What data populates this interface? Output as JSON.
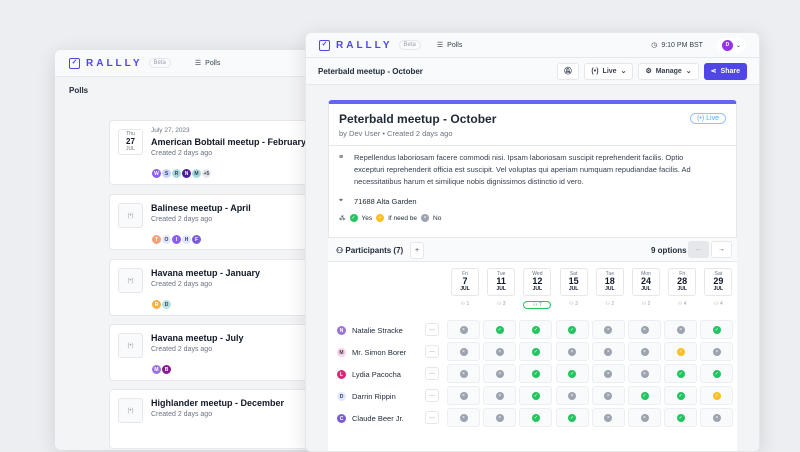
{
  "app": {
    "name": "RALLLY",
    "beta": "Beta",
    "nav_polls": "Polls",
    "time": "9:10 PM BST",
    "user_initial": "D"
  },
  "back": {
    "heading": "Polls",
    "polls": [
      {
        "date": {
          "dow": "Thu",
          "day": "27",
          "mon": "JUL"
        },
        "date_text": "July 27, 2023",
        "title": "American Bobtail meetup - February",
        "created": "Created 2 days ago",
        "avatars": [
          {
            "i": "W",
            "c": "#8b5cf6"
          },
          {
            "i": "S",
            "c": "#c7d2fe"
          },
          {
            "i": "R",
            "c": "#a5d8dd"
          },
          {
            "i": "N",
            "c": "#4c1d95"
          },
          {
            "i": "M",
            "c": "#a5d8dd"
          },
          {
            "i": "+5",
            "c": "#e5e7eb"
          }
        ]
      },
      {
        "title": "Balinese meetup - April",
        "created": "Created 2 days ago",
        "avatars": [
          {
            "i": "T",
            "c": "#f4a17a"
          },
          {
            "i": "O",
            "c": "#e0e7ff"
          },
          {
            "i": "I",
            "c": "#8b5cf6"
          },
          {
            "i": "H",
            "c": "#e0e7ff"
          },
          {
            "i": "F",
            "c": "#7c5cd6"
          }
        ]
      },
      {
        "title": "Havana meetup - January",
        "created": "Created 2 days ago",
        "avatars": [
          {
            "i": "R",
            "c": "#f5b041"
          },
          {
            "i": "D",
            "c": "#b5e0e6"
          }
        ]
      },
      {
        "title": "Havana meetup - July",
        "created": "Created 2 days ago",
        "avatars": [
          {
            "i": "M",
            "c": "#9b72d8"
          },
          {
            "i": "B",
            "c": "#86198f"
          }
        ]
      },
      {
        "title": "Highlander meetup - December",
        "created": "Created 2 days ago",
        "avatars": []
      }
    ]
  },
  "front": {
    "breadcrumb": "Peterbald meetup - October",
    "live": "Live",
    "manage": "Manage",
    "share": "Share",
    "title": "Peterbald meetup - October",
    "byline": "by Dev User • Created 2 days ago",
    "badge": "Live",
    "description": "Repellendus laboriosam facere commodi nisi. Ipsam laboriosam suscipit reprehenderit facilis. Optio excepturi reprehenderit officia est suscipit. Vel voluptas qui aperiam numquam repudiandae facilis. Ad necessitatibus harum et similique nobis dignissimos distinctio id vero.",
    "location": "71688 Alta Garden",
    "legend": {
      "yes": "Yes",
      "maybe": "If need be",
      "no": "No"
    },
    "participants_label": "Participants (7)",
    "options_count": "9 options",
    "options": [
      {
        "dow": "Fri",
        "day": "7",
        "mon": "JUL",
        "count": "1"
      },
      {
        "dow": "Tue",
        "day": "11",
        "mon": "JUL",
        "count": "3"
      },
      {
        "dow": "Wed",
        "day": "12",
        "mon": "JUL",
        "count": "7"
      },
      {
        "dow": "Sat",
        "day": "15",
        "mon": "JUL",
        "count": "3"
      },
      {
        "dow": "Tue",
        "day": "18",
        "mon": "JUL",
        "count": "2"
      },
      {
        "dow": "Mon",
        "day": "24",
        "mon": "JUL",
        "count": "2"
      },
      {
        "dow": "Fri",
        "day": "28",
        "mon": "JUL",
        "count": "4"
      },
      {
        "dow": "Sat",
        "day": "29",
        "mon": "JUL",
        "count": "4"
      }
    ],
    "participants": [
      {
        "name": "Natalie Stracke",
        "initial": "N",
        "color": "#9b72d8",
        "votes": [
          "no",
          "yes",
          "yes",
          "yes",
          "no",
          "no",
          "no",
          "yes"
        ]
      },
      {
        "name": "Mr. Simon Borer",
        "initial": "M",
        "color": "#fbcfe8",
        "votes": [
          "no",
          "no",
          "yes",
          "no",
          "no",
          "no",
          "maybe",
          "no"
        ]
      },
      {
        "name": "Lydia Pacocha",
        "initial": "L",
        "color": "#db2777",
        "votes": [
          "no",
          "no",
          "yes",
          "yes",
          "no",
          "no",
          "yes",
          "yes"
        ]
      },
      {
        "name": "Darrin Rippin",
        "initial": "D",
        "color": "#e0e7ff",
        "votes": [
          "no",
          "no",
          "yes",
          "no",
          "no",
          "yes",
          "yes",
          "maybe"
        ]
      },
      {
        "name": "Claude Beer Jr.",
        "initial": "C",
        "color": "#7c5cd6",
        "votes": [
          "no",
          "no",
          "yes",
          "yes",
          "no",
          "no",
          "yes",
          "no"
        ]
      }
    ]
  },
  "colors": {
    "accent": "#4f46e5",
    "yes": "#22c55e",
    "maybe": "#fbbf24",
    "no": "#9ca3af"
  }
}
